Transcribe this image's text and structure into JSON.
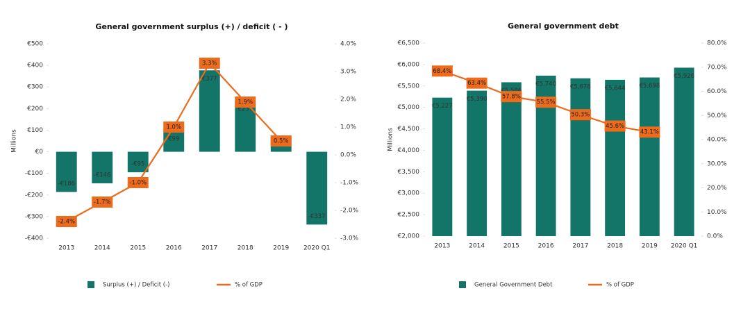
{
  "chart_data": [
    {
      "type": "bar_line",
      "title": "General government surplus (+) / deficit ( - )",
      "y_label": "Millions",
      "categories": [
        "2013",
        "2014",
        "2015",
        "2016",
        "2017",
        "2018",
        "2019",
        "2020 Q1"
      ],
      "series": [
        {
          "name": "Surplus (+) / Deficit (-)",
          "type": "bar",
          "color": "#137567",
          "values": [
            -186,
            -146,
            -95,
            99,
            377,
            237,
            71,
            -337
          ],
          "value_labels": [
            "-€186",
            "-€146",
            "-€95",
            "€99",
            "€377",
            "€237",
            "€71",
            "-€337"
          ]
        },
        {
          "name": "% of GDP",
          "type": "line",
          "axis": "y2",
          "color": "#ec6b1c",
          "values": [
            -2.4,
            -1.7,
            -1.0,
            1.0,
            3.3,
            1.9,
            0.5,
            null
          ],
          "value_labels": [
            "-2.4%",
            "-1.7%",
            "-1.0%",
            "1.0%",
            "3.3%",
            "1.9%",
            "0.5%",
            null
          ]
        }
      ],
      "ylim": [
        -400,
        500
      ],
      "yticks": [
        {
          "value": -400,
          "label": "-€400"
        },
        {
          "value": -300,
          "label": "-€300"
        },
        {
          "value": -200,
          "label": "-€200"
        },
        {
          "value": -100,
          "label": "-€100"
        },
        {
          "value": 0,
          "label": "€0"
        },
        {
          "value": 100,
          "label": "€100"
        },
        {
          "value": 200,
          "label": "€200"
        },
        {
          "value": 300,
          "label": "€300"
        },
        {
          "value": 400,
          "label": "€400"
        },
        {
          "value": 500,
          "label": "€500"
        }
      ],
      "y2lim": [
        -3,
        4
      ],
      "y2ticks": [
        {
          "value": -3,
          "label": "-3.0%"
        },
        {
          "value": -2,
          "label": "-2.0%"
        },
        {
          "value": -1,
          "label": "-1.0%"
        },
        {
          "value": 0,
          "label": "0.0%"
        },
        {
          "value": 1,
          "label": "1.0%"
        },
        {
          "value": 2,
          "label": "2.0%"
        },
        {
          "value": 3,
          "label": "3.0%"
        },
        {
          "value": 4,
          "label": "4.0%"
        }
      ]
    },
    {
      "type": "bar_line",
      "title": "General government debt",
      "y_label": "Millions",
      "categories": [
        "2013",
        "2014",
        "2015",
        "2016",
        "2017",
        "2018",
        "2019",
        "2020 Q1"
      ],
      "series": [
        {
          "name": "General Government Debt",
          "type": "bar",
          "color": "#137567",
          "values": [
            5227,
            5390,
            5586,
            5740,
            5678,
            5644,
            5698,
            5926
          ],
          "value_labels": [
            "€5,227",
            "€5,390",
            "€5,586",
            "€5,740",
            "€5,678",
            "€5,644",
            "€5,698",
            "€5,926"
          ]
        },
        {
          "name": "% of GDP",
          "type": "line",
          "axis": "y2",
          "color": "#ec6b1c",
          "values": [
            68.4,
            63.4,
            57.8,
            55.5,
            50.3,
            45.6,
            43.1,
            null
          ],
          "value_labels": [
            "68.4%",
            "63.4%",
            "57.8%",
            "55.5%",
            "50.3%",
            "45.6%",
            "43.1%",
            null
          ]
        }
      ],
      "ylim": [
        2000,
        6500
      ],
      "yticks": [
        {
          "value": 2000,
          "label": "€2,000"
        },
        {
          "value": 2500,
          "label": "€2,500"
        },
        {
          "value": 3000,
          "label": "€3,000"
        },
        {
          "value": 3500,
          "label": "€3,500"
        },
        {
          "value": 4000,
          "label": "€4,000"
        },
        {
          "value": 4500,
          "label": "€4,500"
        },
        {
          "value": 5000,
          "label": "€5,000"
        },
        {
          "value": 5500,
          "label": "€5,500"
        },
        {
          "value": 6000,
          "label": "€6,000"
        },
        {
          "value": 6500,
          "label": "€6,500"
        }
      ],
      "y2lim": [
        0,
        80
      ],
      "y2ticks": [
        {
          "value": 0,
          "label": "0.0%"
        },
        {
          "value": 10,
          "label": "10.0%"
        },
        {
          "value": 20,
          "label": "20.0%"
        },
        {
          "value": 30,
          "label": "30.0%"
        },
        {
          "value": 40,
          "label": "40.0%"
        },
        {
          "value": 50,
          "label": "50.0%"
        },
        {
          "value": 60,
          "label": "60.0%"
        },
        {
          "value": 70,
          "label": "70.0%"
        },
        {
          "value": 80,
          "label": "80.0%"
        }
      ]
    }
  ]
}
